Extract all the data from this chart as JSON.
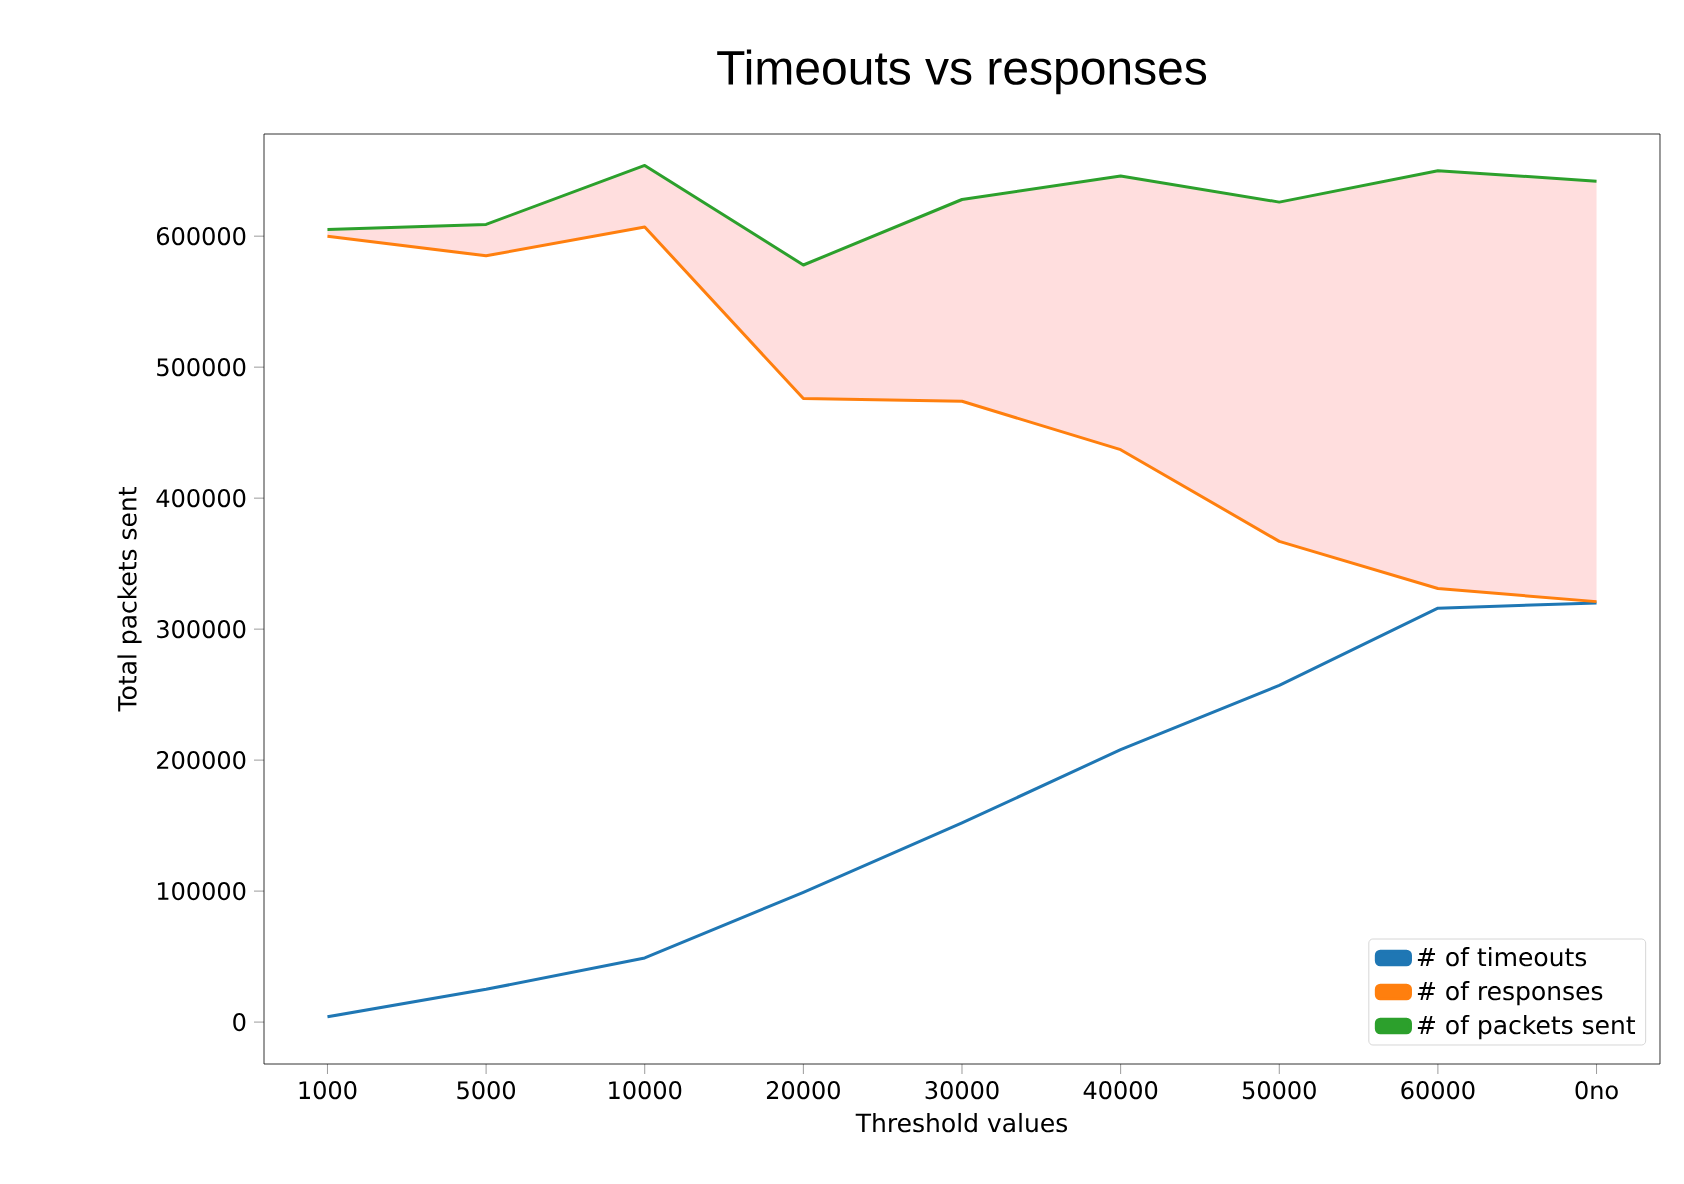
{
  "chart_data": {
    "type": "line",
    "title": "Timeouts vs responses",
    "xlabel": "Threshold values",
    "ylabel": "Total packets sent",
    "categories": [
      "1000",
      "5000",
      "10000",
      "20000",
      "30000",
      "40000",
      "50000",
      "60000",
      "0no"
    ],
    "series": [
      {
        "name": "# of timeouts",
        "color": "#1f77b4",
        "values": [
          4000,
          25000,
          49000,
          99000,
          152000,
          208000,
          257000,
          316000,
          320000
        ]
      },
      {
        "name": "# of responses",
        "color": "#ff7f0e",
        "values": [
          600000,
          585000,
          607000,
          476000,
          474000,
          437000,
          367000,
          331000,
          321000
        ]
      },
      {
        "name": "# of packets sent",
        "color": "#2ca02c",
        "values": [
          605000,
          609000,
          654000,
          578000,
          628000,
          646000,
          626000,
          650000,
          642000
        ],
        "lower": [
          600000,
          585000,
          607000,
          476000,
          474000,
          437000,
          367000,
          331000,
          321000
        ],
        "upper": [
          605000,
          609000,
          654000,
          578000,
          628000,
          646000,
          626000,
          650000,
          642000
        ]
      }
    ],
    "ylim": [
      -32000,
      678000
    ],
    "yticks": [
      0,
      100000,
      200000,
      300000,
      400000,
      500000,
      600000
    ],
    "legend": "bottom right",
    "grid": false
  }
}
